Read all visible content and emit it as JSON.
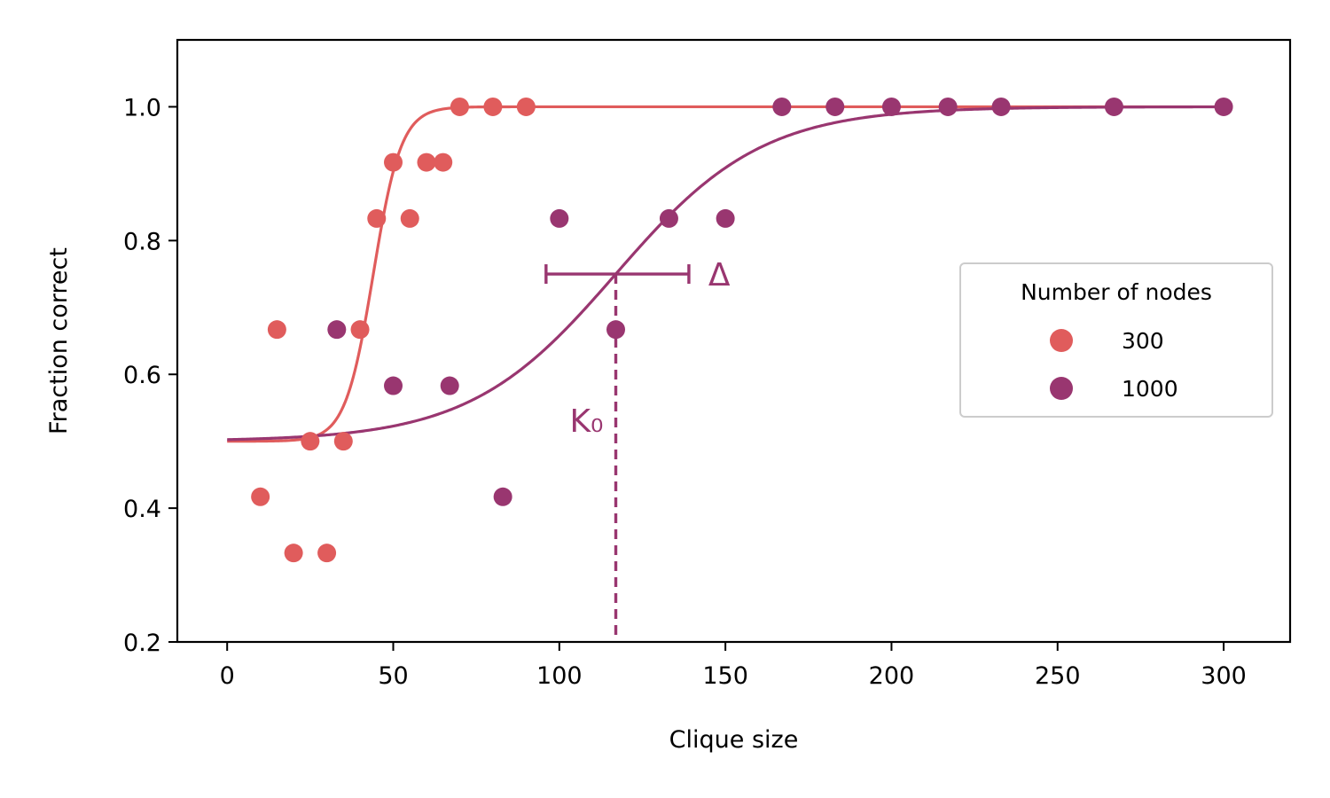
{
  "chart_data": {
    "type": "scatter",
    "xlabel": "Clique size",
    "ylabel": "Fraction correct",
    "xlim": [
      -15,
      320
    ],
    "ylim": [
      0.2,
      1.1
    ],
    "xticks": [
      0,
      50,
      100,
      150,
      200,
      250,
      300
    ],
    "yticks": [
      0.2,
      0.4,
      0.6,
      0.8,
      1.0
    ],
    "xtick_labels": [
      "0",
      "50",
      "100",
      "150",
      "200",
      "250",
      "300"
    ],
    "ytick_labels": [
      "0.2",
      "0.4",
      "0.6",
      "0.8",
      "1.0"
    ],
    "grid": false,
    "legend": {
      "title": "Number of nodes",
      "placement": "center-right"
    },
    "series": [
      {
        "name": "300",
        "color": "#e05c5c",
        "points": [
          {
            "x": 10,
            "y": 0.417
          },
          {
            "x": 15,
            "y": 0.667
          },
          {
            "x": 20,
            "y": 0.333
          },
          {
            "x": 25,
            "y": 0.5
          },
          {
            "x": 30,
            "y": 0.333
          },
          {
            "x": 35,
            "y": 0.5
          },
          {
            "x": 40,
            "y": 0.667
          },
          {
            "x": 45,
            "y": 0.833
          },
          {
            "x": 50,
            "y": 0.917
          },
          {
            "x": 55,
            "y": 0.833
          },
          {
            "x": 60,
            "y": 0.917
          },
          {
            "x": 65,
            "y": 0.917
          },
          {
            "x": 70,
            "y": 1.0
          },
          {
            "x": 80,
            "y": 1.0
          },
          {
            "x": 90,
            "y": 1.0
          }
        ],
        "fit": {
          "type": "logistic",
          "base": 0.5,
          "top": 1.0,
          "midpoint": 44,
          "width": 4.2,
          "x_range": [
            0,
            300
          ]
        }
      },
      {
        "name": "1000",
        "color": "#993670",
        "points": [
          {
            "x": 33,
            "y": 0.667
          },
          {
            "x": 50,
            "y": 0.583
          },
          {
            "x": 67,
            "y": 0.583
          },
          {
            "x": 83,
            "y": 0.417
          },
          {
            "x": 100,
            "y": 0.833
          },
          {
            "x": 117,
            "y": 0.667
          },
          {
            "x": 133,
            "y": 0.833
          },
          {
            "x": 150,
            "y": 0.833
          },
          {
            "x": 167,
            "y": 1.0
          },
          {
            "x": 183,
            "y": 1.0
          },
          {
            "x": 200,
            "y": 1.0
          },
          {
            "x": 217,
            "y": 1.0
          },
          {
            "x": 233,
            "y": 1.0
          },
          {
            "x": 267,
            "y": 1.0
          },
          {
            "x": 300,
            "y": 1.0
          }
        ],
        "fit": {
          "type": "logistic",
          "base": 0.5,
          "top": 1.0,
          "midpoint": 117,
          "width": 22,
          "x_range": [
            0,
            300
          ]
        }
      }
    ],
    "annotations": {
      "k0": {
        "label": "K₀",
        "x": 117,
        "y_top": 0.75,
        "color": "#993670"
      },
      "delta": {
        "label": "Δ",
        "x_start": 96,
        "x_end": 139,
        "y": 0.75,
        "color": "#993670"
      }
    }
  }
}
